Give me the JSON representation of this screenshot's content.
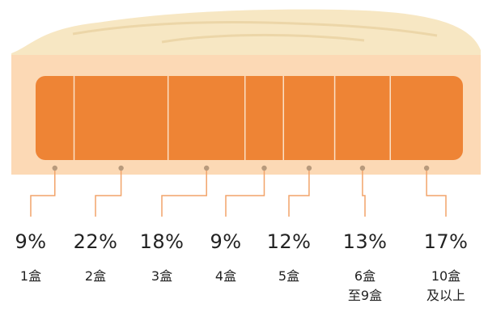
{
  "chart_data": {
    "type": "bar",
    "subtype": "stacked-100-horizontal",
    "categories": [
      "1盒",
      "2盒",
      "3盒",
      "4盒",
      "5盒",
      "6盒\n至9盒",
      "10盒\n及以上"
    ],
    "values": [
      9,
      22,
      18,
      9,
      12,
      13,
      17
    ],
    "value_labels": [
      "9%",
      "22%",
      "18%",
      "9%",
      "12%",
      "13%",
      "17%"
    ],
    "unit": "%",
    "title": "",
    "legend": "none",
    "grid": false
  },
  "colors": {
    "bar_fill": "#ee8435",
    "divider": "#fbe0c6",
    "frame": "#fcd9b5",
    "crust": "#f7e7c3",
    "leader_line": "#f2a46a",
    "leader_dot": "#b89a7c",
    "text": "#222222"
  },
  "icons": [
    "mooncake-illustration"
  ]
}
